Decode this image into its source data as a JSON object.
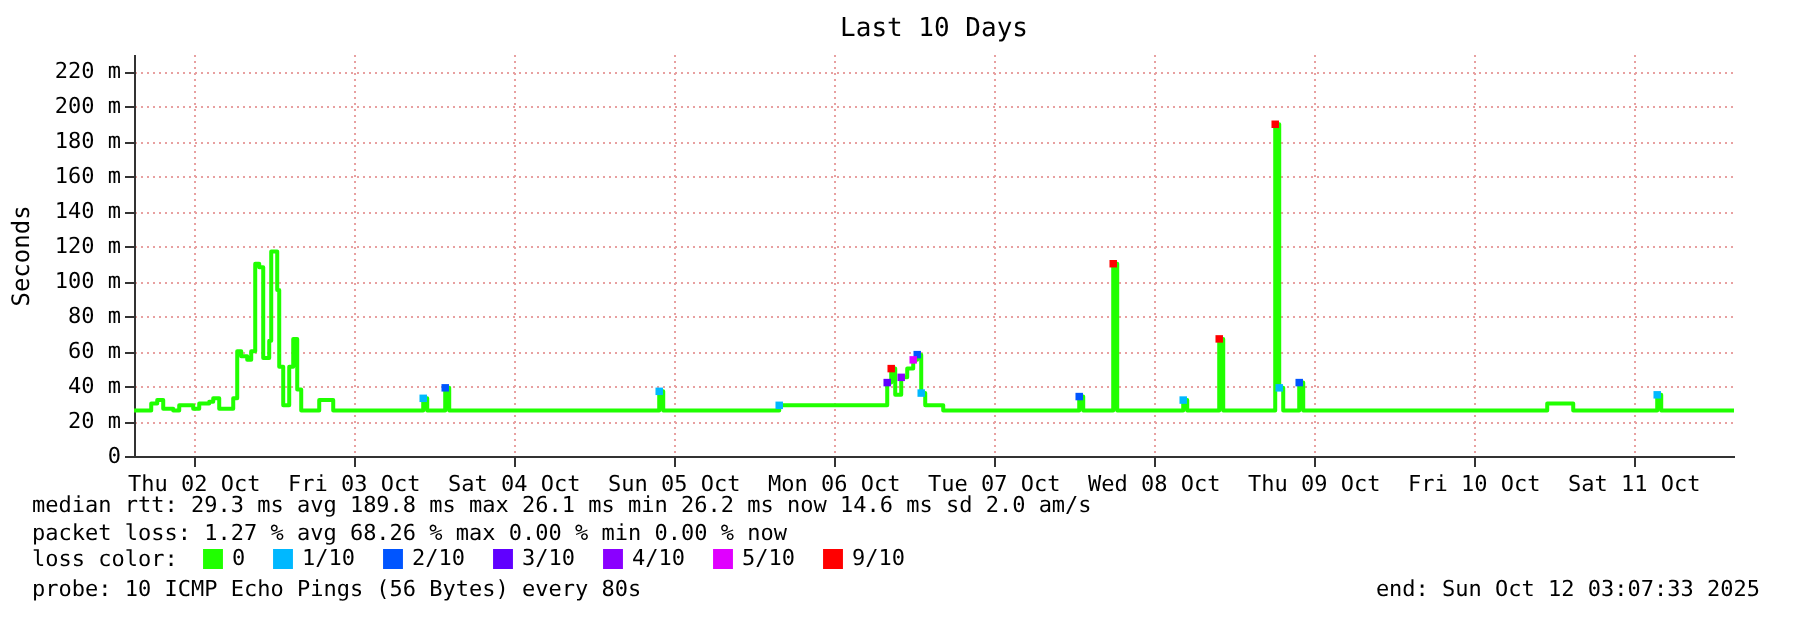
{
  "chart_data": {
    "type": "step",
    "title": "Last 10 Days",
    "ylabel": "Seconds",
    "legend_title": "loss color:",
    "legend": "bottom",
    "grid": true,
    "xlim": [
      "2025-10-02T03:07",
      "2025-10-12T03:07"
    ],
    "xticks": [
      {
        "value": "2025-10-02T12:00",
        "label": "Thu 02 Oct"
      },
      {
        "value": "2025-10-03T12:00",
        "label": "Fri 03 Oct"
      },
      {
        "value": "2025-10-04T12:00",
        "label": "Sat 04 Oct"
      },
      {
        "value": "2025-10-05T12:00",
        "label": "Sun 05 Oct"
      },
      {
        "value": "2025-10-06T12:00",
        "label": "Mon 06 Oct"
      },
      {
        "value": "2025-10-07T12:00",
        "label": "Tue 07 Oct"
      },
      {
        "value": "2025-10-08T12:00",
        "label": "Wed 08 Oct"
      },
      {
        "value": "2025-10-09T12:00",
        "label": "Thu 09 Oct"
      },
      {
        "value": "2025-10-10T12:00",
        "label": "Fri 10 Oct"
      },
      {
        "value": "2025-10-11T12:00",
        "label": "Sat 11 Oct"
      }
    ],
    "ylim": [
      0,
      230
    ],
    "yticks": [
      0,
      {
        "value": 20,
        "label": "20 m"
      },
      {
        "value": 40,
        "label": "40 m"
      },
      {
        "value": 60,
        "label": "60 m"
      },
      {
        "value": 80,
        "label": "80 m"
      },
      {
        "value": 100,
        "label": "100 m"
      },
      {
        "value": 120,
        "label": "120 m"
      },
      {
        "value": 140,
        "label": "140 m"
      },
      {
        "value": 160,
        "label": "160 m"
      },
      {
        "value": 180,
        "label": "180 m"
      },
      {
        "value": 200,
        "label": "200 m"
      },
      {
        "value": 220,
        "label": "220 m"
      }
    ],
    "annotations": [
      "median rtt: 29.3 ms avg 189.8 ms max 26.1 ms min 26.2 ms now 14.6 ms sd 2.0 am/s",
      "packet loss: 1.27 % avg 68.26 % max 0.00 % min 0.00 % now",
      "probe: 10 ICMP Echo Pings (56 Bytes) every 80s",
      "end: Sun Oct 12 03:07:33 2025"
    ],
    "series": [
      {
        "name": "0",
        "color": "#20ff00",
        "x": [
          "2025-10-02T03:07",
          "2025-10-02T05:42",
          "2025-10-02T06:36",
          "2025-10-02T07:30",
          "2025-10-02T09:00",
          "2025-10-02T09:54",
          "2025-10-02T11:06",
          "2025-10-02T12:00",
          "2025-10-02T12:54",
          "2025-10-02T14:24",
          "2025-10-02T15:00",
          "2025-10-02T15:54",
          "2025-10-02T17:06",
          "2025-10-02T18:00",
          "2025-10-02T18:36",
          "2025-10-02T19:12",
          "2025-10-02T20:06",
          "2025-10-02T20:42",
          "2025-10-02T21:18",
          "2025-10-02T21:54",
          "2025-10-02T22:30",
          "2025-10-02T23:24",
          "2025-10-02T23:42",
          "2025-10-03T00:36",
          "2025-10-03T00:54",
          "2025-10-03T01:30",
          "2025-10-03T02:24",
          "2025-10-03T03:00",
          "2025-10-03T03:36",
          "2025-10-03T04:12",
          "2025-10-03T06:18",
          "2025-10-03T06:54",
          "2025-10-03T08:06",
          "2025-10-03T09:00",
          "2025-10-03T21:54",
          "2025-10-03T22:30",
          "2025-10-03T23:06",
          "2025-10-04T01:12",
          "2025-10-04T01:48",
          "2025-10-04T02:24",
          "2025-10-05T09:18",
          "2025-10-05T09:54",
          "2025-10-05T10:30",
          "2025-10-06T03:18",
          "2025-10-06T03:54",
          "2025-10-06T19:30",
          "2025-10-06T20:06",
          "2025-10-06T20:42",
          "2025-10-06T21:18",
          "2025-10-06T22:12",
          "2025-10-06T23:06",
          "2025-10-07T00:00",
          "2025-10-07T00:36",
          "2025-10-07T01:12",
          "2025-10-07T01:48",
          "2025-10-07T03:54",
          "2025-10-07T04:30",
          "2025-10-08T00:18",
          "2025-10-08T00:54",
          "2025-10-08T01:30",
          "2025-10-08T05:24",
          "2025-10-08T06:00",
          "2025-10-08T06:36",
          "2025-10-08T15:54",
          "2025-10-08T16:30",
          "2025-10-08T17:06",
          "2025-10-08T21:18",
          "2025-10-08T21:54",
          "2025-10-08T22:30",
          "2025-10-09T05:42",
          "2025-10-09T06:18",
          "2025-10-09T06:54",
          "2025-10-09T07:30",
          "2025-10-09T09:18",
          "2025-10-09T09:54",
          "2025-10-09T10:30",
          "2025-10-10T22:30",
          "2025-10-10T23:06",
          "2025-10-11T02:24",
          "2025-10-11T03:00",
          "2025-10-11T15:00",
          "2025-10-11T15:36",
          "2025-10-11T16:12",
          "2025-10-12T03:07"
        ],
        "values": [
          26,
          30,
          32,
          27,
          26,
          29,
          29,
          27,
          30,
          31,
          33,
          27,
          27,
          33,
          60,
          57,
          55,
          60,
          110,
          108,
          56,
          66,
          117,
          95,
          51,
          29,
          51,
          67,
          38,
          26,
          26,
          32,
          32,
          26,
          26,
          33,
          26,
          26,
          39,
          26,
          26,
          37,
          26,
          26,
          29,
          29,
          42,
          50,
          35,
          45,
          50,
          55,
          58,
          36,
          29,
          29,
          26,
          26,
          34,
          26,
          26,
          110,
          26,
          26,
          32,
          26,
          26,
          67,
          26,
          26,
          189.8,
          39,
          26,
          26,
          42,
          26,
          26,
          30,
          30,
          26,
          26,
          35,
          26,
          26
        ]
      },
      {
        "name": "1/10",
        "type": "scatter",
        "color": "#00b8ff",
        "x": [
          "2025-10-03T22:30",
          "2025-10-05T09:54",
          "2025-10-06T03:54",
          "2025-10-07T01:12",
          "2025-10-08T16:30",
          "2025-10-09T06:54",
          "2025-10-11T15:36"
        ],
        "values": [
          33,
          37,
          29,
          36,
          32,
          39,
          35
        ]
      },
      {
        "name": "2/10",
        "type": "scatter",
        "color": "#0055ff",
        "x": [
          "2025-10-04T01:48",
          "2025-10-07T00:36",
          "2025-10-08T00:54",
          "2025-10-09T09:54"
        ],
        "values": [
          39,
          58,
          34,
          42
        ]
      },
      {
        "name": "3/10",
        "type": "scatter",
        "color": "#6000ff",
        "x": [
          "2025-10-06T20:06"
        ],
        "values": [
          42
        ]
      },
      {
        "name": "4/10",
        "type": "scatter",
        "color": "#8a00ff",
        "x": [
          "2025-10-06T22:12"
        ],
        "values": [
          45
        ]
      },
      {
        "name": "5/10",
        "type": "scatter",
        "color": "#e000ff",
        "x": [
          "2025-10-07T00:00"
        ],
        "values": [
          55
        ]
      },
      {
        "name": "9/10",
        "type": "scatter",
        "color": "#ff0000",
        "x": [
          "2025-10-06T20:42",
          "2025-10-08T06:00",
          "2025-10-08T21:54",
          "2025-10-09T06:18"
        ],
        "values": [
          50,
          110,
          67,
          189.8
        ]
      }
    ]
  }
}
